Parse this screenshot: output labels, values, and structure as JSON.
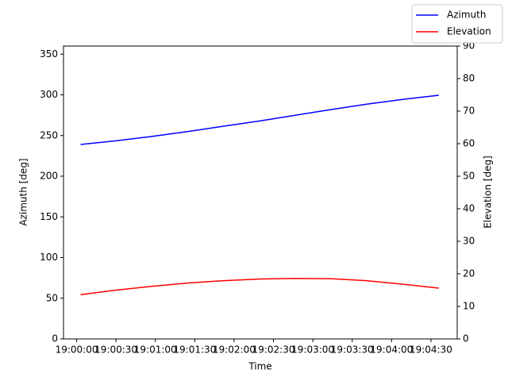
{
  "chart_data": {
    "type": "line",
    "x_label": "Time",
    "y_label": "Azimuth [deg]",
    "y2_label": "Elevation [deg]",
    "x": [
      "19:00:03",
      "19:00:30",
      "19:00:58",
      "19:01:25",
      "19:01:52",
      "19:02:20",
      "19:02:47",
      "19:03:14",
      "19:03:41",
      "19:04:09",
      "19:04:36"
    ],
    "series": [
      {
        "name": "Azimuth",
        "color": "#0000ff",
        "values": [
          239,
          243.5,
          249,
          255,
          261.5,
          268,
          275,
          282,
          288.5,
          294.5,
          299.5
        ]
      },
      {
        "name": "Elevation",
        "color": "#ff0000",
        "axis": "y2",
        "values": [
          13.6,
          15.0,
          16.2,
          17.2,
          17.9,
          18.4,
          18.6,
          18.5,
          17.9,
          16.8,
          15.6
        ]
      }
    ],
    "xlim": [
      "18:59:50",
      "19:04:50"
    ],
    "xticks": [
      "19:00:00",
      "19:00:30",
      "19:01:00",
      "19:01:30",
      "19:02:00",
      "19:02:30",
      "19:03:00",
      "19:03:30",
      "19:04:00",
      "19:04:30"
    ],
    "ylim": [
      0,
      360
    ],
    "yticks": [
      0,
      50,
      100,
      150,
      200,
      250,
      300,
      350
    ],
    "y2lim": [
      0,
      90
    ],
    "y2ticks": [
      0,
      10,
      20,
      30,
      40,
      50,
      60,
      70,
      80,
      90
    ],
    "grid": false,
    "legend": "upper right"
  }
}
